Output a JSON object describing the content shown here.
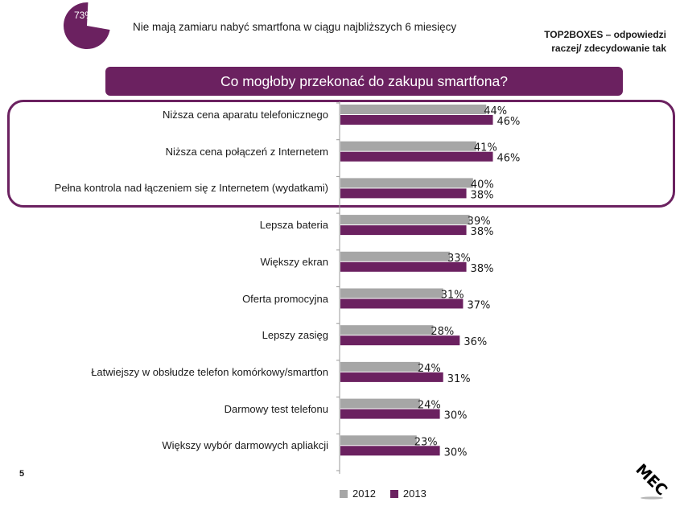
{
  "header": {
    "pie_value_label": "73%",
    "pie_value": 73,
    "subtitle": "Nie mają zamiaru nabyć smartfona w ciągu najbliższych 6 miesięcy",
    "top2boxes_line1": "TOP2BOXES – odpowiedzi",
    "top2boxes_line2": "raczej/ zdecydowanie tak",
    "question_title": "Co mogłoby przekonać do zakupu smartfona?"
  },
  "footer": {
    "page_number": "5",
    "logo_text": "MEC"
  },
  "colors": {
    "series_2012": "#A6A6A6",
    "series_2013": "#6B2160",
    "accent": "#6B2160"
  },
  "chart_data": {
    "type": "bar",
    "orientation": "horizontal",
    "title": "Co mogłoby przekonać do zakupu smartfona?",
    "xlabel": "",
    "ylabel": "",
    "xlim": [
      0,
      100
    ],
    "unit": "%",
    "grid": false,
    "legend_position": "bottom",
    "highlighted_categories": [
      0,
      1,
      2
    ],
    "categories": [
      "Niższa cena aparatu telefonicznego",
      "Niższa cena połączeń z Internetem",
      "Pełna kontrola nad łączeniem się z Internetem (wydatkami)",
      "Lepsza bateria",
      "Większy ekran",
      "Oferta promocyjna",
      "Lepszy zasięg",
      "Łatwiejszy w obsłudze telefon komórkowy/smartfon",
      "Darmowy test telefonu",
      "Większy wybór darmowych apliakcji"
    ],
    "series": [
      {
        "name": "2012",
        "values": [
          44,
          41,
          40,
          39,
          33,
          31,
          28,
          24,
          24,
          23
        ]
      },
      {
        "name": "2013",
        "values": [
          46,
          46,
          38,
          38,
          38,
          37,
          36,
          31,
          30,
          30
        ]
      }
    ]
  }
}
